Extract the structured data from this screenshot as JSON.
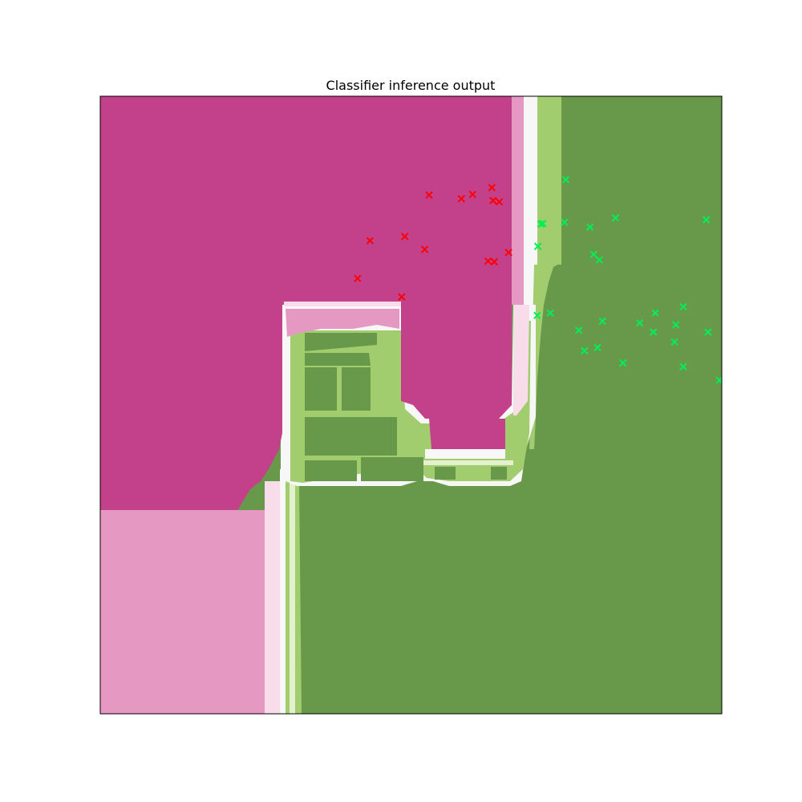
{
  "chart_data": {
    "type": "scatter",
    "title": "Classifier inference output",
    "xlabel": "",
    "ylabel": "",
    "xlim": [
      0,
      1
    ],
    "ylim": [
      0,
      1
    ],
    "axis_ticks": "none",
    "grid": false,
    "background": "filled decision-region contour map",
    "colors": {
      "region_class_a_strong": "#c2418a",
      "region_class_a_weak": "#e598c2",
      "region_class_a_faint": "#f8dcea",
      "region_neutral": "#f7f7f7",
      "region_class_b_faint": "#e3f1cf",
      "region_class_b_weak": "#a1cd6f",
      "region_class_b_strong": "#68994b",
      "points_class_a": "#ff0000",
      "points_class_b": "#00ee55"
    },
    "series": [
      {
        "marker": "x",
        "color": "#ff0000",
        "points": [
          [
            0.529,
            0.84
          ],
          [
            0.581,
            0.834
          ],
          [
            0.599,
            0.841
          ],
          [
            0.63,
            0.852
          ],
          [
            0.632,
            0.831
          ],
          [
            0.642,
            0.829
          ],
          [
            0.434,
            0.766
          ],
          [
            0.49,
            0.773
          ],
          [
            0.522,
            0.752
          ],
          [
            0.624,
            0.733
          ],
          [
            0.634,
            0.732
          ],
          [
            0.657,
            0.747
          ],
          [
            0.414,
            0.705
          ],
          [
            0.485,
            0.675
          ]
        ]
      },
      {
        "marker": "x",
        "color": "#00ee55",
        "points": [
          [
            0.749,
            0.865
          ],
          [
            0.712,
            0.794
          ],
          [
            0.709,
            0.793
          ],
          [
            0.747,
            0.796
          ],
          [
            0.788,
            0.788
          ],
          [
            0.829,
            0.803
          ],
          [
            0.975,
            0.8
          ],
          [
            0.704,
            0.757
          ],
          [
            0.794,
            0.744
          ],
          [
            0.803,
            0.735
          ],
          [
            0.703,
            0.645
          ],
          [
            0.724,
            0.649
          ],
          [
            0.808,
            0.636
          ],
          [
            0.868,
            0.633
          ],
          [
            0.893,
            0.649
          ],
          [
            0.938,
            0.659
          ],
          [
            0.926,
            0.63
          ],
          [
            0.978,
            0.618
          ],
          [
            0.77,
            0.621
          ],
          [
            0.89,
            0.618
          ],
          [
            0.8,
            0.593
          ],
          [
            0.779,
            0.588
          ],
          [
            0.924,
            0.602
          ],
          [
            0.841,
            0.568
          ],
          [
            0.938,
            0.562
          ],
          [
            0.996,
            0.54
          ]
        ]
      }
    ]
  }
}
